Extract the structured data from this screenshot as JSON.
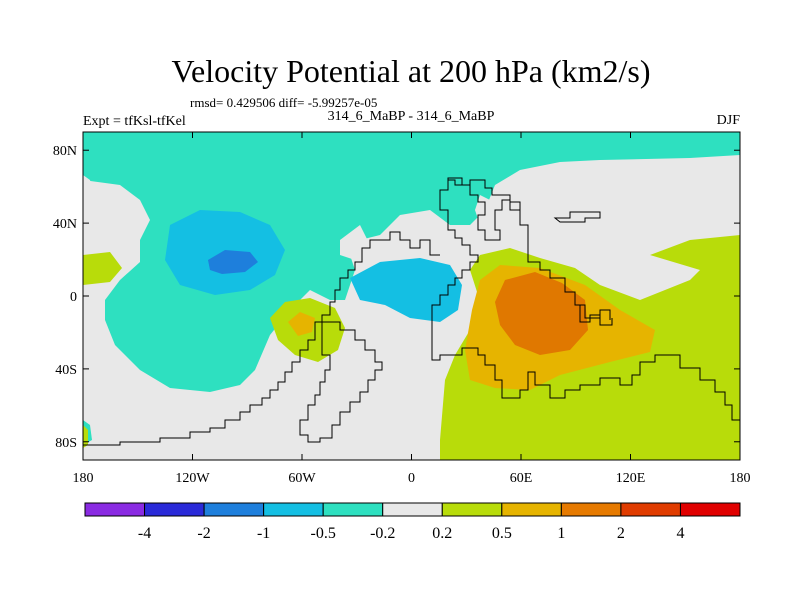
{
  "chart_data": {
    "type": "heatmap",
    "title": "Velocity Potential at 200 hPa (km2/s)",
    "stats_text": "rmsd= 0.429506 diff= -5.99257e-05",
    "expt_label": "Expt = tfKsl-tfKel",
    "case_label": "314_6_MaBP - 314_6_MaBP",
    "season": "DJF",
    "xticks": [
      "180",
      "120W",
      "60W",
      "0",
      "60E",
      "120E",
      "180"
    ],
    "yticks": [
      "80N",
      "40N",
      "0",
      "40S",
      "80S"
    ],
    "colorbar": {
      "labels": [
        "-4",
        "-2",
        "-1",
        "-0.5",
        "-0.2",
        "0.2",
        "0.5",
        "1",
        "2",
        "4"
      ],
      "colors": [
        "#8a2be2",
        "#2a2ad8",
        "#1e7fdc",
        "#14bfe3",
        "#2ee0c0",
        "#e8e8e8",
        "#b8dc0a",
        "#e6b400",
        "#e67a00",
        "#e03c00",
        "#e00000"
      ]
    },
    "fill_colors": {
      "teal": "#2ee0c0",
      "cyan": "#14bfe3",
      "blue": "#1e7fdc",
      "grey": "#e8e8e8",
      "yellowgreen": "#b8dc0a",
      "gold": "#e6b400",
      "orange": "#e07800"
    }
  }
}
